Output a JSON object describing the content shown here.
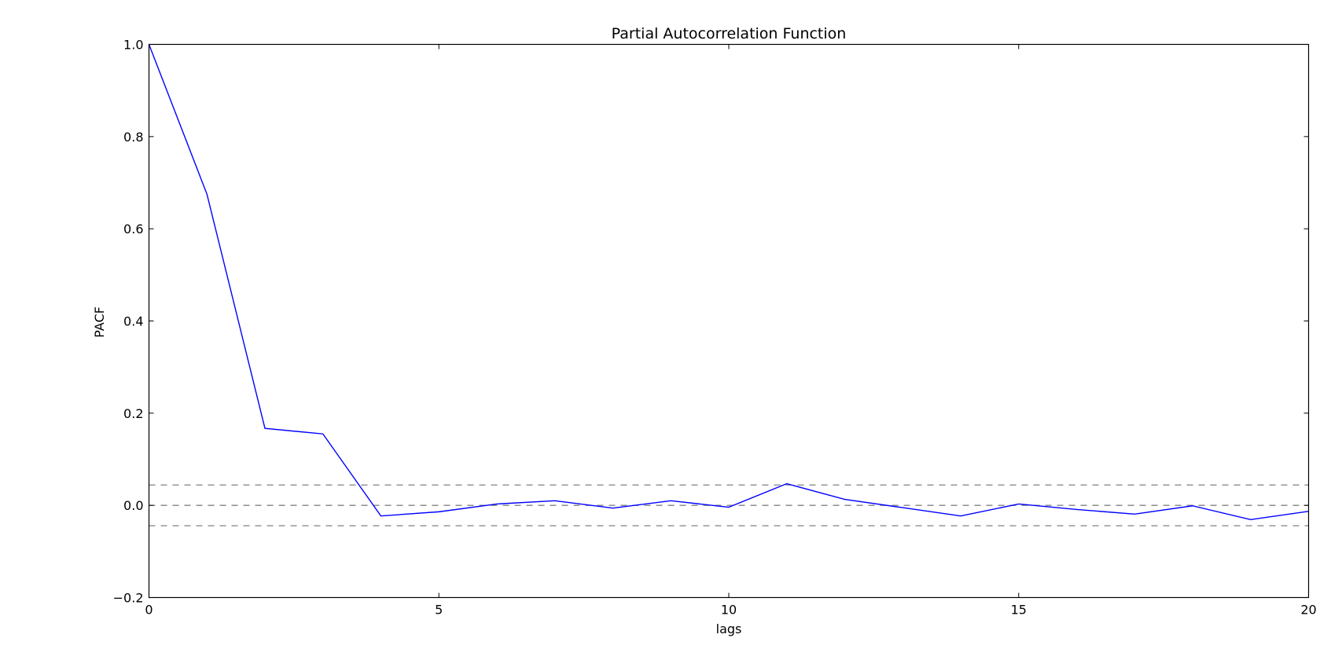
{
  "chart_data": {
    "type": "line",
    "title": "Partial Autocorrelation Function",
    "xlabel": "lags",
    "ylabel": "PACF",
    "xlim": [
      0,
      20
    ],
    "ylim": [
      -0.2,
      1.0
    ],
    "x_ticks": [
      0,
      5,
      10,
      15,
      20
    ],
    "x_tick_labels": [
      "0",
      "5",
      "10",
      "15",
      "20"
    ],
    "y_ticks": [
      -0.2,
      0.0,
      0.2,
      0.4,
      0.6,
      0.8,
      1.0
    ],
    "y_tick_labels": [
      "−0.2",
      "0.0",
      "0.2",
      "0.4",
      "0.6",
      "0.8",
      "1.0"
    ],
    "grid": false,
    "series": [
      {
        "color": "#0000ff",
        "x": [
          0,
          1,
          2,
          3,
          4,
          5,
          6,
          7,
          8,
          9,
          10,
          11,
          12,
          13,
          14,
          15,
          16,
          17,
          18,
          19,
          20
        ],
        "values": [
          1.0,
          0.675,
          0.167,
          0.155,
          -0.023,
          -0.014,
          0.003,
          0.01,
          -0.006,
          0.01,
          -0.004,
          0.047,
          0.013,
          -0.005,
          -0.023,
          0.003,
          -0.009,
          -0.019,
          -0.001,
          -0.031,
          -0.013
        ]
      }
    ],
    "reference_lines": [
      {
        "y": 0.0442,
        "style": "dashed",
        "color": "#808080"
      },
      {
        "y": 0.0,
        "style": "dashed",
        "color": "#808080"
      },
      {
        "y": -0.0442,
        "style": "dashed",
        "color": "#808080"
      }
    ]
  }
}
